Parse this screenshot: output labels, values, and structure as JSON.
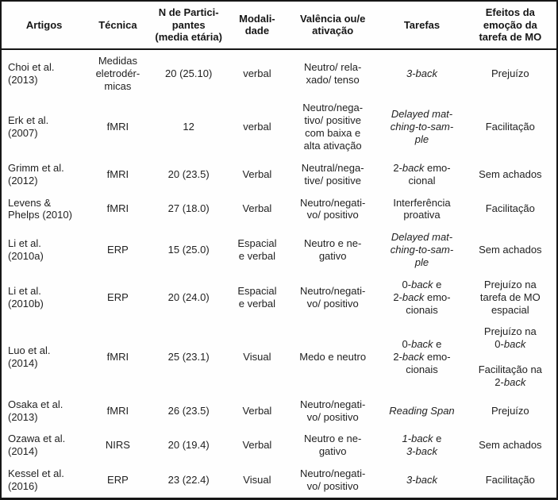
{
  "table": {
    "columns": [
      {
        "key": "artigos",
        "label": "Artigos"
      },
      {
        "key": "tecnica",
        "label": "Técnica"
      },
      {
        "key": "participantes",
        "label": "N de Partici-\npantes\n(media etária)"
      },
      {
        "key": "modalidade",
        "label": "Modali-\ndade"
      },
      {
        "key": "valencia",
        "label": "Valência ou/e\nativação"
      },
      {
        "key": "tarefas",
        "label": "Tarefas"
      },
      {
        "key": "efeitos",
        "label": "Efeitos da\nemoção da\ntarefa de MO"
      }
    ],
    "rows": [
      {
        "cells": [
          "Choi et al.\n(2013)",
          "Medidas\neletrodér-\nmicas",
          "20 (25.10)",
          "verbal",
          "Neutro/ rela-\nxado/ tenso",
          "*3-back*",
          "Prejuízo"
        ]
      },
      {
        "cells": [
          "Erk et al.\n(2007)",
          "fMRI",
          "12",
          "verbal",
          "Neutro/nega-\ntivo/ positive\ncom baixa e\nalta ativação",
          "*Delayed mat-\nching-to-sam-\nple*",
          "Facilitação"
        ]
      },
      {
        "cells": [
          "Grimm et al.\n(2012)",
          "fMRI",
          "20 (23.5)",
          "Verbal",
          "Neutral/nega-\ntive/ positive",
          "2-*back* emo-\ncional",
          "Sem achados"
        ]
      },
      {
        "cells": [
          "Levens &\nPhelps (2010)",
          "fMRI",
          "27 (18.0)",
          "Verbal",
          "Neutro/negati-\nvo/ positivo",
          "Interferência\nproativa",
          "Facilitação"
        ]
      },
      {
        "cells": [
          "Li et al.\n(2010a)",
          "ERP",
          "15 (25.0)",
          "Espacial\ne verbal",
          "Neutro e ne-\ngativo",
          "*Delayed mat-\nching-to-sam-\nple*",
          "Sem achados"
        ]
      },
      {
        "cells": [
          "Li et al.\n(2010b)",
          "ERP",
          "20 (24.0)",
          "Espacial\ne verbal",
          "Neutro/negati-\nvo/ positivo",
          "0-*back* e\n2-*back* emo-\ncionais",
          "Prejuízo na\ntarefa de MO\nespacial"
        ]
      },
      {
        "cells": [
          "Luo et al.\n(2014)",
          "fMRI",
          "25 (23.1)",
          "Visual",
          "Medo e neutro",
          "0-*back* e\n2-*back* emo-\ncionais",
          "Prejuízo na\n0-*back*\n\nFacilitação na\n2-*back*"
        ]
      },
      {
        "cells": [
          "Osaka et al.\n(2013)",
          "fMRI",
          "26 (23.5)",
          "Verbal",
          "Neutro/negati-\nvo/ positivo",
          "*Reading Span*",
          "Prejuízo"
        ]
      },
      {
        "cells": [
          "Ozawa et al.\n(2014)",
          "NIRS",
          "20 (19.4)",
          "Verbal",
          "Neutro e ne-\ngativo",
          "*1-back* e\n*3-back*",
          "Sem achados"
        ]
      },
      {
        "cells": [
          "Kessel et al.\n(2016)",
          "ERP",
          "23 (22.4)",
          "Visual",
          "Neutro/negati-\nvo/ positivo",
          "*3-back*",
          "Facilitação"
        ]
      }
    ]
  }
}
